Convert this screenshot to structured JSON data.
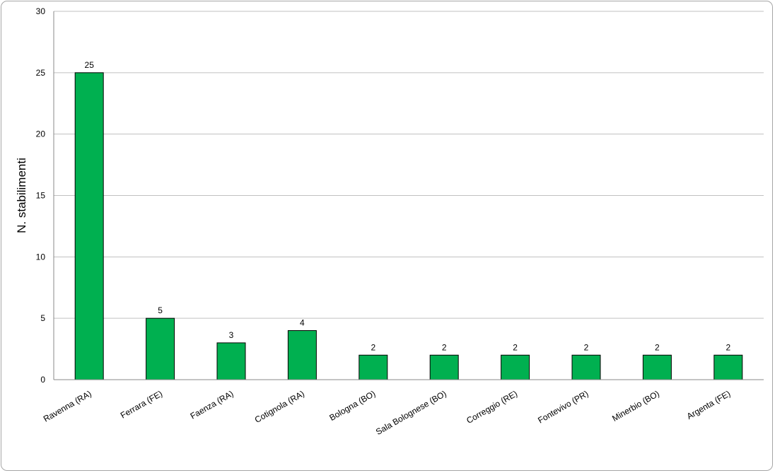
{
  "chart_data": {
    "type": "bar",
    "ylabel": "N. stabilimenti",
    "xlabel": "",
    "ylim": [
      0,
      30
    ],
    "yticks": [
      0,
      5,
      10,
      15,
      20,
      25,
      30
    ],
    "grid": true,
    "bar_color": "#00b050",
    "categories": [
      "Ravenna (RA)",
      "Ferrara (FE)",
      "Faenza (RA)",
      "Cotignola (RA)",
      "Bologna (BO)",
      "Sala Bolognese (BO)",
      "Correggio (RE)",
      "Fontevivo (PR)",
      "Minerbio (BO)",
      "Argenta (FE)"
    ],
    "values": [
      25,
      5,
      3,
      4,
      2,
      2,
      2,
      2,
      2,
      2
    ]
  }
}
